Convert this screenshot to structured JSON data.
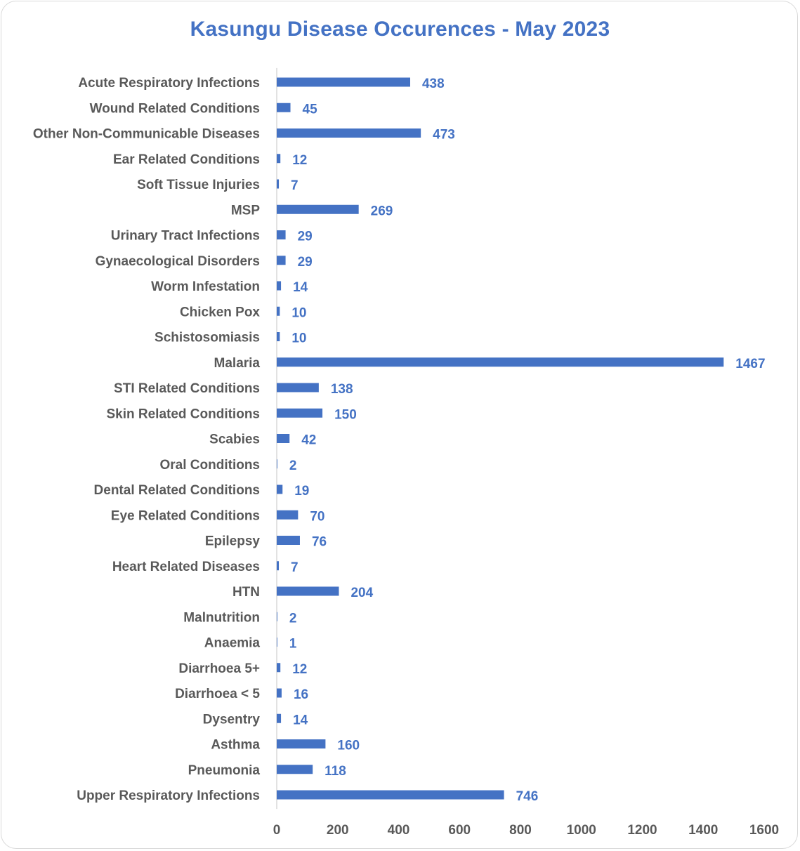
{
  "chart_data": {
    "type": "bar",
    "orientation": "horizontal",
    "title": "Kasungu Disease Occurences - May 2023",
    "categories": [
      "Acute Respiratory Infections",
      "Wound Related Conditions",
      "Other Non-Communicable Diseases",
      "Ear Related Conditions",
      "Soft Tissue Injuries",
      "MSP",
      "Urinary Tract Infections",
      "Gynaecological Disorders",
      "Worm Infestation",
      "Chicken Pox",
      "Schistosomiasis",
      "Malaria",
      "STI Related Conditions",
      "Skin Related Conditions",
      "Scabies",
      "Oral Conditions",
      "Dental Related Conditions",
      "Eye Related Conditions",
      "Epilepsy",
      "Heart Related Diseases",
      "HTN",
      "Malnutrition",
      "Anaemia",
      "Diarrhoea 5+",
      "Diarrhoea < 5",
      "Dysentry",
      "Asthma",
      "Pneumonia",
      "Upper Respiratory Infections"
    ],
    "values": [
      438,
      45,
      473,
      12,
      7,
      269,
      29,
      29,
      14,
      10,
      10,
      1467,
      138,
      150,
      42,
      2,
      19,
      70,
      76,
      7,
      204,
      2,
      1,
      12,
      16,
      14,
      160,
      118,
      746
    ],
    "xlim": [
      0,
      1600
    ],
    "xticks": [
      0,
      200,
      400,
      600,
      800,
      1000,
      1200,
      1400,
      1600
    ],
    "xlabel": "",
    "ylabel": "",
    "grid": false,
    "legend": "none",
    "data_labels": true,
    "colors": {
      "bar": "#4472c4",
      "title": "#4472c4",
      "data_label": "#4472c4",
      "axis_text": "#595959",
      "axis_line": "#d9d9d9"
    }
  }
}
